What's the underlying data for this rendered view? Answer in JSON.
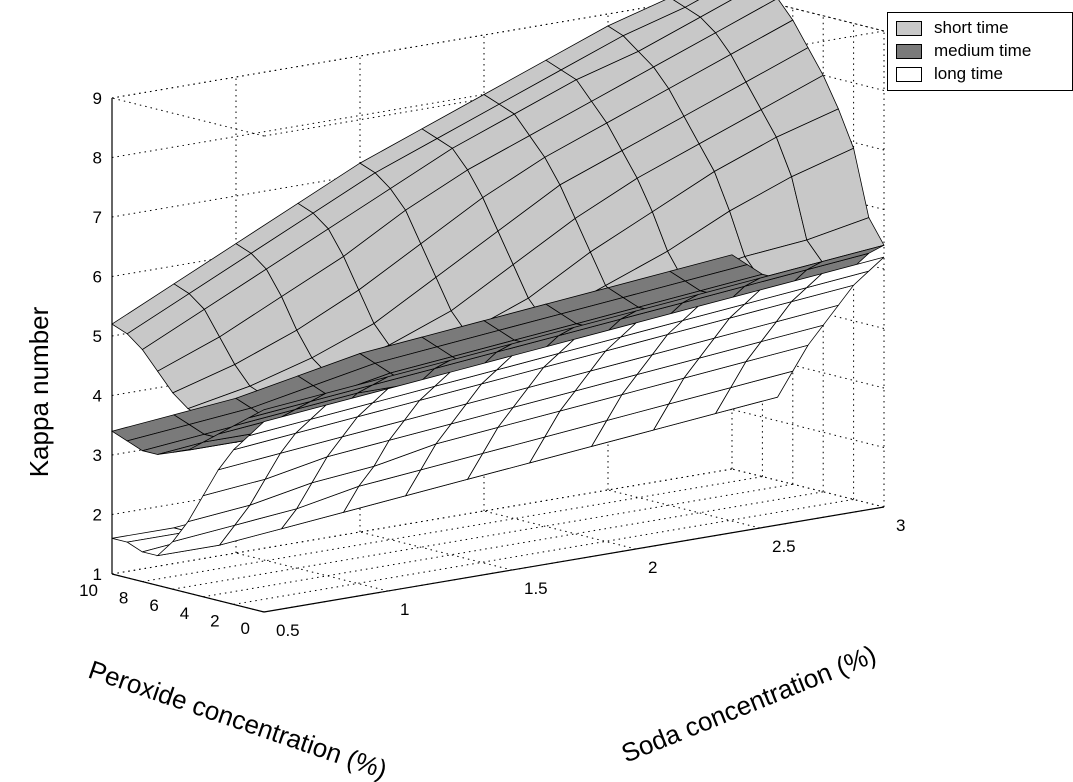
{
  "chart_data": {
    "type": "surface",
    "title": "",
    "zlabel": "Kappa number",
    "xlabel": "Soda concentration (%)",
    "ylabel": "Peroxide concentration (%)",
    "zticks": [
      "1",
      "2",
      "3",
      "4",
      "5",
      "6",
      "7",
      "8",
      "9"
    ],
    "xticks": [
      "0.5",
      "1",
      "1.5",
      "2",
      "2.5",
      "3"
    ],
    "yticks": [
      "0",
      "2",
      "4",
      "6",
      "8",
      "10"
    ],
    "zlim": [
      1,
      9
    ],
    "xlim": [
      0.5,
      3
    ],
    "ylim": [
      0,
      10
    ],
    "grid": true,
    "legend_position": "top-right",
    "x_values": [
      0.5,
      0.75,
      1.0,
      1.25,
      1.5,
      1.75,
      2.0,
      2.25,
      2.5,
      2.75,
      3.0
    ],
    "y_values": [
      10,
      9,
      8,
      7,
      6,
      5,
      4,
      3,
      2,
      1,
      0
    ],
    "series": [
      {
        "name": "short time",
        "color": "#c8c8c8",
        "z": [
          [
            5.2,
            5.7,
            6.2,
            6.7,
            7.2,
            7.6,
            8.0,
            8.4,
            8.8,
            9.1,
            9.5
          ],
          [
            5.1,
            5.6,
            6.1,
            6.6,
            7.1,
            7.5,
            7.9,
            8.3,
            8.7,
            9.0,
            9.4
          ],
          [
            4.9,
            5.4,
            5.9,
            6.4,
            6.9,
            7.4,
            7.8,
            8.2,
            8.5,
            8.9,
            9.3
          ],
          [
            4.6,
            5.0,
            5.5,
            6.0,
            6.6,
            7.1,
            7.5,
            7.9,
            8.3,
            8.7,
            9.1
          ],
          [
            4.3,
            4.6,
            5.0,
            5.5,
            6.1,
            6.7,
            7.2,
            7.6,
            8.0,
            8.4,
            8.8
          ],
          [
            4.1,
            4.3,
            4.6,
            5.0,
            5.6,
            6.2,
            6.8,
            7.2,
            7.6,
            8.0,
            8.4
          ],
          [
            4.0,
            4.2,
            4.4,
            4.7,
            5.1,
            5.7,
            6.3,
            6.8,
            7.2,
            7.6,
            8.0
          ],
          [
            4.0,
            4.2,
            4.3,
            4.5,
            4.8,
            5.2,
            5.8,
            6.3,
            6.8,
            7.2,
            7.5
          ],
          [
            4.1,
            4.2,
            4.4,
            4.5,
            4.7,
            4.9,
            5.3,
            5.7,
            6.2,
            6.6,
            6.9
          ],
          [
            4.2,
            4.3,
            4.4,
            4.6,
            4.7,
            4.9,
            5.1,
            5.3,
            5.5,
            5.6,
            5.8
          ],
          [
            4.3,
            4.4,
            4.5,
            4.6,
            4.8,
            4.9,
            5.0,
            5.1,
            5.2,
            5.3,
            5.4
          ]
        ]
      },
      {
        "name": "medium time",
        "color": "#7a7a7a",
        "z": [
          [
            3.4,
            3.5,
            3.6,
            3.8,
            4.0,
            4.1,
            4.2,
            4.3,
            4.4,
            4.5,
            4.6
          ],
          [
            3.3,
            3.4,
            3.5,
            3.7,
            3.9,
            4.0,
            4.1,
            4.2,
            4.3,
            4.4,
            4.5
          ],
          [
            3.2,
            3.3,
            3.4,
            3.6,
            3.8,
            3.9,
            4.0,
            4.1,
            4.2,
            4.3,
            4.4
          ],
          [
            3.2,
            3.3,
            3.4,
            3.5,
            3.7,
            3.8,
            4.0,
            4.1,
            4.2,
            4.3,
            4.4
          ],
          [
            3.3,
            3.3,
            3.4,
            3.5,
            3.6,
            3.8,
            3.9,
            4.0,
            4.2,
            4.3,
            4.4
          ],
          [
            3.4,
            3.4,
            3.5,
            3.6,
            3.7,
            3.8,
            3.9,
            4.1,
            4.2,
            4.3,
            4.4
          ],
          [
            3.6,
            3.6,
            3.7,
            3.8,
            3.9,
            4.0,
            4.1,
            4.2,
            4.3,
            4.4,
            4.5
          ],
          [
            3.8,
            3.9,
            3.9,
            4.0,
            4.1,
            4.2,
            4.3,
            4.4,
            4.5,
            4.6,
            4.7
          ],
          [
            4.0,
            4.1,
            4.2,
            4.2,
            4.3,
            4.4,
            4.5,
            4.6,
            4.7,
            4.8,
            4.9
          ],
          [
            4.2,
            4.3,
            4.4,
            4.5,
            4.6,
            4.7,
            4.8,
            4.9,
            5.0,
            5.1,
            5.2
          ],
          [
            4.4,
            4.5,
            4.6,
            4.7,
            4.8,
            4.9,
            5.0,
            5.1,
            5.2,
            5.3,
            5.4
          ]
        ]
      },
      {
        "name": "long time",
        "color": "#ffffff",
        "z": [
          [
            1.6,
            1.6,
            1.7,
            1.8,
            1.9,
            2.0,
            2.1,
            2.2,
            2.3,
            2.4,
            2.5
          ],
          [
            1.6,
            1.6,
            1.7,
            1.8,
            1.9,
            2.0,
            2.1,
            2.2,
            2.3,
            2.4,
            2.5
          ],
          [
            1.5,
            1.6,
            1.6,
            1.7,
            1.8,
            1.9,
            2.0,
            2.1,
            2.2,
            2.3,
            2.4
          ],
          [
            1.5,
            1.5,
            1.6,
            1.7,
            1.8,
            1.9,
            2.0,
            2.1,
            2.2,
            2.3,
            2.4
          ],
          [
            1.8,
            1.9,
            2.0,
            2.2,
            2.3,
            2.4,
            2.5,
            2.6,
            2.7,
            2.8,
            2.9
          ],
          [
            2.2,
            2.3,
            2.5,
            2.6,
            2.8,
            2.9,
            3.0,
            3.1,
            3.2,
            3.3,
            3.4
          ],
          [
            2.7,
            2.8,
            3.0,
            3.1,
            3.2,
            3.3,
            3.4,
            3.5,
            3.6,
            3.7,
            3.8
          ],
          [
            3.2,
            3.3,
            3.4,
            3.5,
            3.6,
            3.7,
            3.8,
            3.9,
            4.0,
            4.1,
            4.2
          ],
          [
            3.6,
            3.7,
            3.8,
            3.9,
            4.0,
            4.1,
            4.2,
            4.3,
            4.4,
            4.5,
            4.6
          ],
          [
            3.9,
            4.0,
            4.1,
            4.2,
            4.3,
            4.4,
            4.5,
            4.6,
            4.7,
            4.8,
            4.9
          ],
          [
            4.2,
            4.3,
            4.4,
            4.5,
            4.6,
            4.7,
            4.8,
            4.9,
            5.0,
            5.1,
            5.2
          ]
        ]
      }
    ]
  },
  "legend": {
    "items": [
      {
        "label": "short time",
        "color": "#c8c8c8"
      },
      {
        "label": "medium time",
        "color": "#7a7a7a"
      },
      {
        "label": "long time",
        "color": "#ffffff"
      }
    ]
  }
}
